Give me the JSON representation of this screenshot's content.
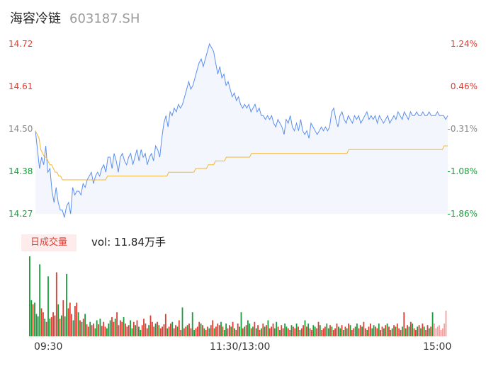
{
  "header": {
    "name": "海容冷链",
    "code": "603187.SH"
  },
  "colors": {
    "up": "#e03c31",
    "down": "#1a9c3a",
    "neutral": "#888888",
    "price_line": "#5b8ff0",
    "avg_line": "#f5b531"
  },
  "chart_data": [
    {
      "type": "line",
      "title": "",
      "price_axis": {
        "ticks": [
          "14.72",
          "14.61",
          "14.50",
          "14.38",
          "14.27"
        ],
        "ylim": [
          14.27,
          14.72
        ]
      },
      "pct_axis": {
        "ticks": [
          "1.24%",
          "0.46%",
          "-0.31%",
          "-1.08%",
          "-1.86%"
        ]
      },
      "x_ticks": [
        "09:30",
        "11:30/13:00",
        "15:00"
      ],
      "minutes_total": 240,
      "series": [
        {
          "values": [
            14.49,
            14.44,
            14.39,
            14.42,
            14.4,
            14.45,
            14.38,
            14.39,
            14.33,
            14.3,
            14.34,
            14.3,
            14.28,
            14.28,
            14.26,
            14.29,
            14.3,
            14.27,
            14.34,
            14.32,
            14.33,
            14.33,
            14.32,
            14.35,
            14.34,
            14.36,
            14.37,
            14.38,
            14.35,
            14.37,
            14.38,
            14.37,
            14.39,
            14.4,
            14.38,
            14.42,
            14.42,
            14.39,
            14.43,
            14.41,
            14.38,
            14.42,
            14.43,
            14.41,
            14.4,
            14.42,
            14.43,
            14.4,
            14.42,
            14.44,
            14.41,
            14.44,
            14.42,
            14.43,
            14.4,
            14.42,
            14.43,
            14.41,
            14.45,
            14.44,
            14.42,
            14.47,
            14.51,
            14.53,
            14.5,
            14.54,
            14.53,
            14.55,
            14.54,
            14.56,
            14.55,
            14.56,
            14.58,
            14.6,
            14.62,
            14.6,
            14.61,
            14.63,
            14.65,
            14.67,
            14.68,
            14.66,
            14.68,
            14.7,
            14.72,
            14.71,
            14.7,
            14.67,
            14.64,
            14.66,
            14.63,
            14.64,
            14.61,
            14.62,
            14.6,
            14.58,
            14.59,
            14.57,
            14.58,
            14.56,
            14.55,
            14.56,
            14.55,
            14.56,
            14.54,
            14.55,
            14.56,
            14.54,
            14.55,
            14.53,
            14.53,
            14.52,
            14.53,
            14.52,
            14.53,
            14.51,
            14.5,
            14.52,
            14.51,
            14.5,
            14.48,
            14.52,
            14.51,
            14.53,
            14.5,
            14.49,
            14.51,
            14.49,
            14.52,
            14.49,
            14.48,
            14.49,
            14.47,
            14.51,
            14.5,
            14.49,
            14.48,
            14.49,
            14.5,
            14.49,
            14.5,
            14.49,
            14.5,
            14.54,
            14.55,
            14.52,
            14.5,
            14.53,
            14.54,
            14.52,
            14.51,
            14.53,
            14.52,
            14.51,
            14.53,
            14.52,
            14.53,
            14.51,
            14.52,
            14.53,
            14.54,
            14.52,
            14.53,
            14.52,
            14.53,
            14.51,
            14.53,
            14.52,
            14.51,
            14.52,
            14.53,
            14.51,
            14.52,
            14.53,
            14.52,
            14.54,
            14.53,
            14.52,
            14.54,
            14.53,
            14.52,
            14.54,
            14.53,
            14.53,
            14.54,
            14.53,
            14.53,
            14.54,
            14.53,
            14.53,
            14.54,
            14.53,
            14.53,
            14.53,
            14.54,
            14.53,
            14.53,
            14.53,
            14.52,
            14.53
          ],
          "color": "#5b8ff0"
        },
        {
          "values": [
            14.49,
            14.48,
            14.47,
            14.44,
            14.43,
            14.42,
            14.42,
            14.41,
            14.4,
            14.4,
            14.39,
            14.38,
            14.38,
            14.37,
            14.37,
            14.36,
            14.36,
            14.36,
            14.36,
            14.36,
            14.36,
            14.36,
            14.36,
            14.36,
            14.36,
            14.36,
            14.36,
            14.36,
            14.36,
            14.36,
            14.36,
            14.36,
            14.36,
            14.36,
            14.36,
            14.36,
            14.36,
            14.36,
            14.36,
            14.36,
            14.37,
            14.37,
            14.37,
            14.37,
            14.37,
            14.37,
            14.37,
            14.37,
            14.37,
            14.37,
            14.37,
            14.37,
            14.37,
            14.37,
            14.37,
            14.37,
            14.37,
            14.37,
            14.37,
            14.37,
            14.37,
            14.37,
            14.37,
            14.37,
            14.37,
            14.37,
            14.37,
            14.37,
            14.37,
            14.37,
            14.37,
            14.37,
            14.37,
            14.37,
            14.38,
            14.38,
            14.38,
            14.38,
            14.38,
            14.38,
            14.38,
            14.38,
            14.38,
            14.38,
            14.38,
            14.38,
            14.38,
            14.38,
            14.38,
            14.39,
            14.39,
            14.39,
            14.39,
            14.39,
            14.39,
            14.39,
            14.4,
            14.4,
            14.4,
            14.4,
            14.41,
            14.41,
            14.41,
            14.41,
            14.41,
            14.41,
            14.42,
            14.42,
            14.42,
            14.42,
            14.42,
            14.42,
            14.42,
            14.42,
            14.42,
            14.42,
            14.42,
            14.42,
            14.42,
            14.42,
            14.43,
            14.43,
            14.43,
            14.43,
            14.43,
            14.43,
            14.43,
            14.43,
            14.43,
            14.43,
            14.43,
            14.43,
            14.43,
            14.43,
            14.43,
            14.43,
            14.43,
            14.43,
            14.43,
            14.43,
            14.43,
            14.43,
            14.43,
            14.43,
            14.43,
            14.43,
            14.43,
            14.43,
            14.43,
            14.43,
            14.43,
            14.43,
            14.43,
            14.43,
            14.43,
            14.43,
            14.43,
            14.43,
            14.43,
            14.43,
            14.43,
            14.43,
            14.43,
            14.43,
            14.43,
            14.43,
            14.43,
            14.43,
            14.43,
            14.43,
            14.43,
            14.43,
            14.43,
            14.43,
            14.44,
            14.44,
            14.44,
            14.44,
            14.44,
            14.44,
            14.44,
            14.44,
            14.44,
            14.44,
            14.44,
            14.44,
            14.44,
            14.44,
            14.44,
            14.44,
            14.44,
            14.44,
            14.44,
            14.44,
            14.44,
            14.44,
            14.44,
            14.44,
            14.44,
            14.44,
            14.44,
            14.44,
            14.44,
            14.44,
            14.44,
            14.44,
            14.44,
            14.44,
            14.44,
            14.44,
            14.44,
            14.44,
            14.44,
            14.44,
            14.44,
            14.44,
            14.44,
            14.44,
            14.44,
            14.44,
            14.44,
            14.44,
            14.44,
            14.44,
            14.44,
            14.44,
            14.44,
            14.45,
            14.45,
            14.45
          ],
          "color": "#f5b531"
        }
      ]
    },
    {
      "type": "bar",
      "title": "",
      "label": "日成交量",
      "summary": "vol: 11.84万手",
      "values": [
        100,
        45,
        40,
        42,
        28,
        25,
        90,
        35,
        30,
        22,
        18,
        75,
        22,
        24,
        30,
        26,
        80,
        40,
        22,
        26,
        45,
        25,
        78,
        35,
        42,
        28,
        20,
        38,
        42,
        30,
        20,
        18,
        22,
        28,
        15,
        12,
        18,
        14,
        16,
        10,
        20,
        15,
        22,
        13,
        18,
        12,
        10,
        16,
        20,
        24,
        18,
        22,
        30,
        14,
        20,
        18,
        24,
        16,
        12,
        14,
        20,
        10,
        18,
        14,
        20,
        12,
        8,
        14,
        22,
        16,
        10,
        14,
        26,
        18,
        12,
        16,
        18,
        14,
        10,
        12,
        15,
        28,
        10,
        12,
        16,
        18,
        10,
        14,
        12,
        20,
        8,
        36,
        10,
        12,
        14,
        16,
        10,
        30,
        8,
        10,
        12,
        18,
        16,
        14,
        10,
        8,
        12,
        10,
        14,
        20,
        10,
        12,
        16,
        14,
        18,
        12,
        8,
        16,
        10,
        14,
        12,
        18,
        10,
        8,
        16,
        12,
        30,
        10,
        12,
        14,
        20,
        16,
        10,
        12,
        18,
        10,
        14,
        8,
        10,
        16,
        12,
        14,
        20,
        10,
        12,
        16,
        10,
        18,
        12,
        8,
        14,
        10,
        16,
        12,
        10,
        8,
        14,
        12,
        10,
        16,
        12,
        8,
        10,
        14,
        20,
        12,
        16,
        10,
        8,
        14,
        12,
        10,
        18,
        14,
        8,
        10,
        12,
        16,
        10,
        14,
        12,
        8,
        10,
        16,
        12,
        10,
        14,
        8,
        12,
        10,
        16,
        14,
        8,
        10,
        12,
        16,
        10,
        14,
        12,
        18,
        10,
        8,
        12,
        16,
        10,
        14,
        12,
        10,
        16,
        8,
        12,
        10,
        14,
        16,
        12,
        8,
        10,
        14,
        12,
        16,
        10,
        8,
        12,
        30,
        10,
        14,
        12,
        18,
        16,
        10,
        8,
        12,
        14,
        10,
        16,
        12,
        8,
        14,
        10,
        12,
        30,
        16,
        10,
        12,
        14,
        8,
        10,
        16,
        32
      ],
      "colors": [
        "d",
        "d",
        "u",
        "d",
        "d",
        "d",
        "d",
        "u",
        "u",
        "d",
        "u",
        "d",
        "d",
        "u",
        "u",
        "u",
        "u",
        "d",
        "u",
        "d",
        "u",
        "d",
        "d",
        "u",
        "u",
        "u",
        "d",
        "u",
        "u",
        "d",
        "u",
        "d",
        "u",
        "d",
        "u",
        "u",
        "d",
        "u",
        "u",
        "d",
        "d",
        "u",
        "d",
        "u",
        "u",
        "u",
        "d",
        "d",
        "d",
        "u",
        "u",
        "d",
        "u",
        "u",
        "u",
        "u",
        "d",
        "u",
        "u",
        "u",
        "d",
        "d",
        "u",
        "d",
        "u",
        "d",
        "d",
        "u",
        "u",
        "u",
        "u",
        "d",
        "u",
        "u",
        "u",
        "d",
        "u",
        "d",
        "u",
        "u",
        "u",
        "u",
        "d",
        "u",
        "u",
        "d",
        "u",
        "u",
        "d",
        "u",
        "u",
        "d",
        "u",
        "u",
        "d",
        "u",
        "u",
        "d",
        "d",
        "u",
        "u",
        "u",
        "d",
        "u",
        "d",
        "u",
        "u",
        "d",
        "u",
        "u",
        "d",
        "u",
        "u",
        "u",
        "d",
        "u",
        "d",
        "d",
        "u",
        "u",
        "d",
        "u",
        "d",
        "u",
        "u",
        "d",
        "d",
        "u",
        "d",
        "u",
        "d",
        "d",
        "u",
        "d",
        "u",
        "d",
        "u",
        "u",
        "d",
        "u",
        "d",
        "u",
        "d",
        "u",
        "u",
        "u",
        "d",
        "d",
        "u",
        "d",
        "u",
        "u",
        "d",
        "d",
        "u",
        "u",
        "d",
        "u",
        "u",
        "d",
        "u",
        "d",
        "u",
        "u",
        "d",
        "u",
        "d",
        "u",
        "u",
        "d",
        "d",
        "u",
        "u",
        "d",
        "u",
        "u",
        "u",
        "d",
        "d",
        "u",
        "d",
        "u",
        "u",
        "u",
        "d",
        "d",
        "u",
        "d",
        "u",
        "d",
        "u",
        "d",
        "u",
        "u",
        "d",
        "d",
        "u",
        "u",
        "d",
        "u",
        "u",
        "d",
        "u",
        "u",
        "d",
        "d",
        "u",
        "u",
        "d",
        "u",
        "u",
        "d",
        "u",
        "d",
        "u",
        "u",
        "d",
        "u",
        "d",
        "u",
        "u",
        "u",
        "d",
        "u",
        "d",
        "u",
        "d",
        "u",
        "d",
        "u",
        "u",
        "d",
        "u",
        "d",
        "u",
        "d",
        "u",
        "u",
        "d",
        "u",
        "d",
        "n"
      ]
    }
  ]
}
